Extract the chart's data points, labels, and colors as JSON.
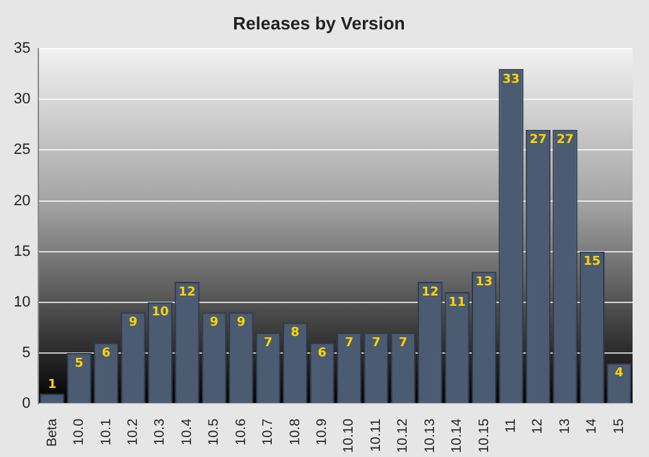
{
  "chart_data": {
    "type": "bar",
    "title": "Releases by Version",
    "categories": [
      "Beta",
      "10.0",
      "10.1",
      "10.2",
      "10.3",
      "10.4",
      "10.5",
      "10.6",
      "10.7",
      "10.8",
      "10.9",
      "10.10",
      "10.11",
      "10.12",
      "10.13",
      "10.14",
      "10.15",
      "11",
      "12",
      "13",
      "14",
      "15"
    ],
    "values": [
      1,
      5,
      6,
      9,
      10,
      12,
      9,
      9,
      7,
      8,
      6,
      7,
      7,
      7,
      12,
      11,
      13,
      33,
      27,
      27,
      15,
      4
    ],
    "color": "#4b5b72",
    "ylim": [
      0,
      35
    ],
    "yticks": [
      0,
      5,
      10,
      15,
      20,
      25,
      30,
      35
    ],
    "grid": "y",
    "data_labels": true
  }
}
